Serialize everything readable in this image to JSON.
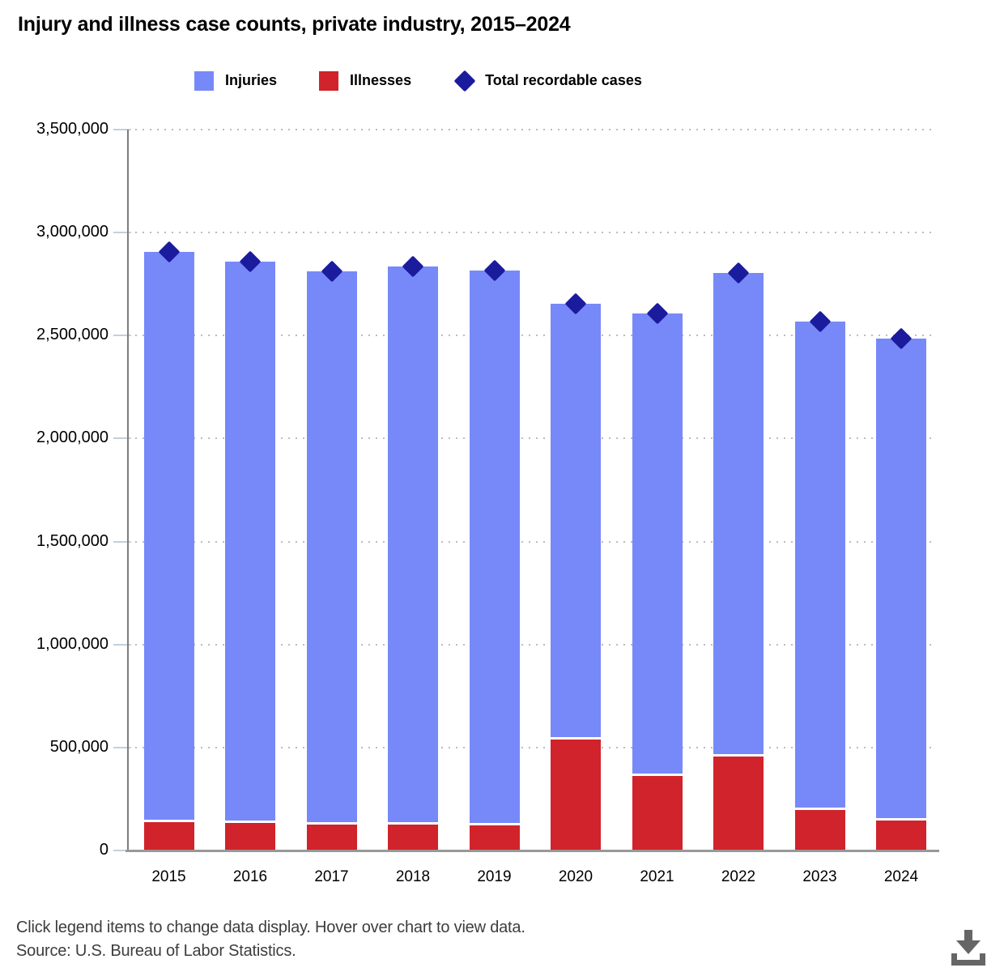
{
  "title": "Injury and illness case counts, private industry, 2015–2024",
  "legend": {
    "items": [
      {
        "label": "Injuries",
        "marker": "square",
        "color": "#7789F8"
      },
      {
        "label": "Illnesses",
        "marker": "square",
        "color": "#D0232B"
      },
      {
        "label": "Total recordable cases",
        "marker": "diamond",
        "color": "#1B1B9E"
      }
    ]
  },
  "footer": {
    "line1": "Click legend items to change data display. Hover over chart to view data.",
    "line2": "Source: U.S. Bureau of Labor Statistics."
  },
  "icons": {
    "download": "download-icon"
  },
  "colors": {
    "injuries": "#7789F8",
    "illnesses": "#D0232B",
    "total_marker": "#1B1B9E",
    "gridline": "#BCBCBC",
    "axis": "#7D7D7D",
    "tick": "#C3CFDD",
    "icon": "#666666"
  },
  "chart_data": {
    "type": "bar",
    "stacked": true,
    "title": "Injury and illness case counts, private industry, 2015–2024",
    "categories": [
      "2015",
      "2016",
      "2017",
      "2018",
      "2019",
      "2020",
      "2021",
      "2022",
      "2023",
      "2024"
    ],
    "series": [
      {
        "name": "Illnesses",
        "type": "bar",
        "stack_order": "bottom",
        "color": "#D0232B",
        "values": [
          140000,
          137000,
          130000,
          130000,
          127200,
          544600,
          365200,
          460700,
          200100,
          150500
        ]
      },
      {
        "name": "Injuries",
        "type": "bar",
        "stack_order": "top",
        "color": "#7789F8",
        "values": [
          2765900,
          2720400,
          2681500,
          2704500,
          2686800,
          2110100,
          2242700,
          2343500,
          2368700,
          2336200
        ]
      },
      {
        "name": "Total recordable cases",
        "type": "scatter",
        "marker": "diamond",
        "color": "#1B1B9E",
        "values": [
          2905900,
          2857400,
          2811500,
          2834500,
          2814000,
          2654700,
          2607900,
          2804200,
          2568800,
          2486700
        ]
      }
    ],
    "xlabel": "",
    "ylabel": "",
    "ylim": [
      0,
      3500000
    ],
    "ytick_interval": 500000,
    "ytick_labels": [
      "0",
      "500,000",
      "1,000,000",
      "1,500,000",
      "2,000,000",
      "2,500,000",
      "3,000,000",
      "3,500,000"
    ],
    "grid": "horizontal-dotted",
    "legend_position": "top"
  }
}
